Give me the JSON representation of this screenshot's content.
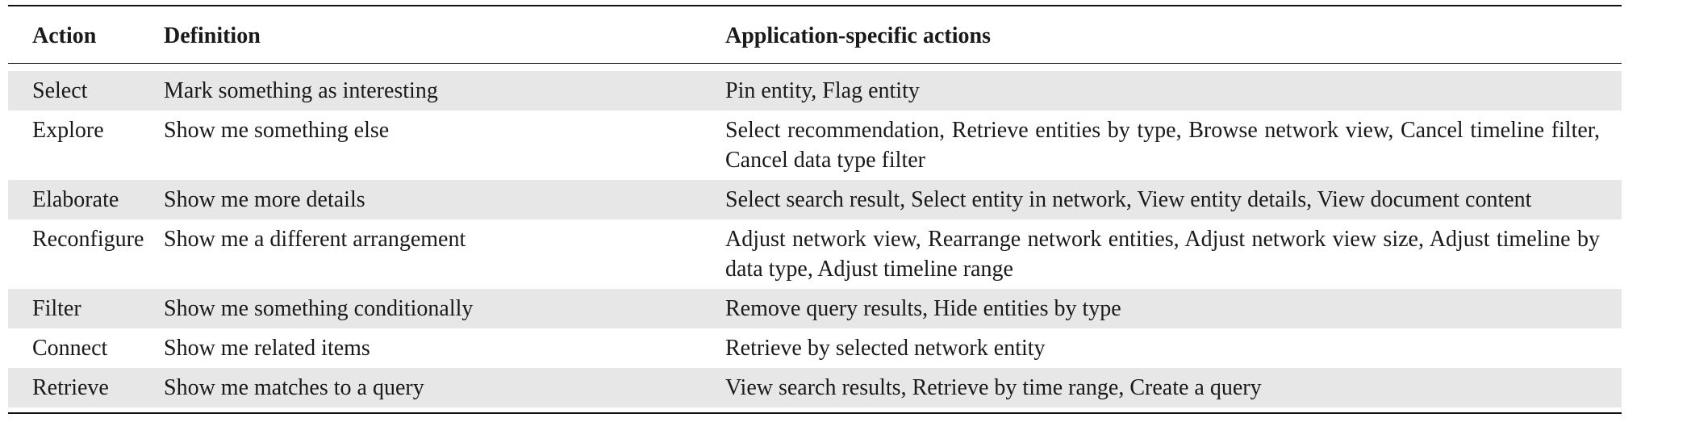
{
  "table": {
    "headers": [
      "Action",
      "Definition",
      "Application-specific actions"
    ],
    "rows": [
      {
        "action": "Select",
        "definition": "Mark something as interesting",
        "app_actions": "Pin entity, Flag entity"
      },
      {
        "action": "Explore",
        "definition": "Show me something else",
        "app_actions": "Select recommendation, Retrieve entities by type, Browse network view, Cancel timeline filter, Cancel data type filter"
      },
      {
        "action": "Elaborate",
        "definition": "Show me more details",
        "app_actions": "Select search result, Select entity in network, View entity details, View document content"
      },
      {
        "action": "Reconfigure",
        "definition": "Show me a different arrangement",
        "app_actions": "Adjust network view, Rearrange network entities, Adjust network view size, Adjust timeline by data type, Adjust timeline range"
      },
      {
        "action": "Filter",
        "definition": "Show me something conditionally",
        "app_actions": "Remove query results, Hide entities by type"
      },
      {
        "action": "Connect",
        "definition": "Show me related items",
        "app_actions": "Retrieve by selected network entity"
      },
      {
        "action": "Retrieve",
        "definition": "Show me matches to a query",
        "app_actions": "View search results, Retrieve by time range, Create a query"
      }
    ]
  }
}
